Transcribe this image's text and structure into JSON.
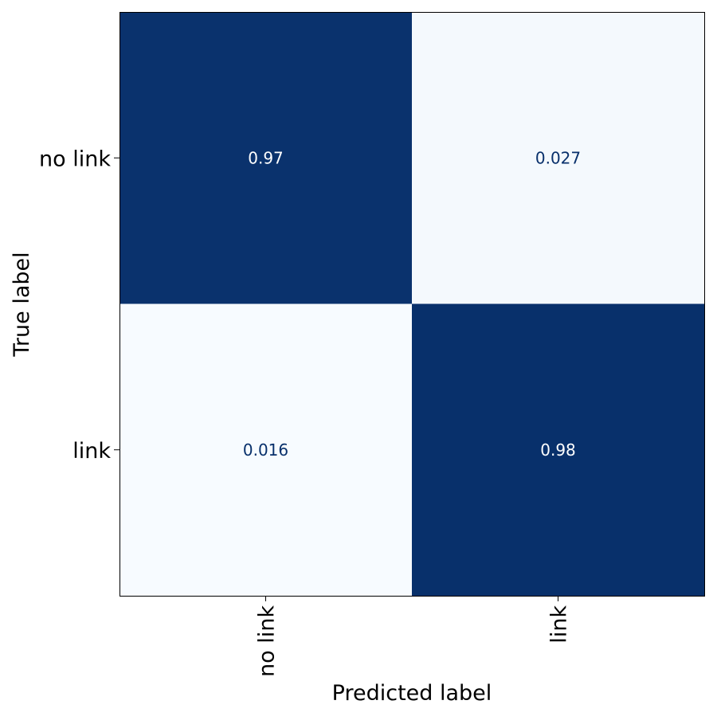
{
  "chart_data": {
    "type": "heatmap",
    "title": "",
    "xlabel": "Predicted label",
    "ylabel": "True label",
    "x_categories": [
      "no link",
      "link"
    ],
    "y_categories": [
      "no link",
      "link"
    ],
    "values": [
      [
        0.97,
        0.027
      ],
      [
        0.016,
        0.98
      ]
    ],
    "cell_labels": [
      [
        "0.97",
        "0.027"
      ],
      [
        "0.016",
        "0.98"
      ]
    ],
    "colormap": "Blues",
    "colors": {
      "low": "#f7fbff",
      "high": "#08306b",
      "text_on_dark": "#ffffff",
      "text_on_light": "#08306b",
      "axis": "#000000"
    },
    "x_tick_rotation": "vertical",
    "colorbar": false,
    "grid": false
  }
}
